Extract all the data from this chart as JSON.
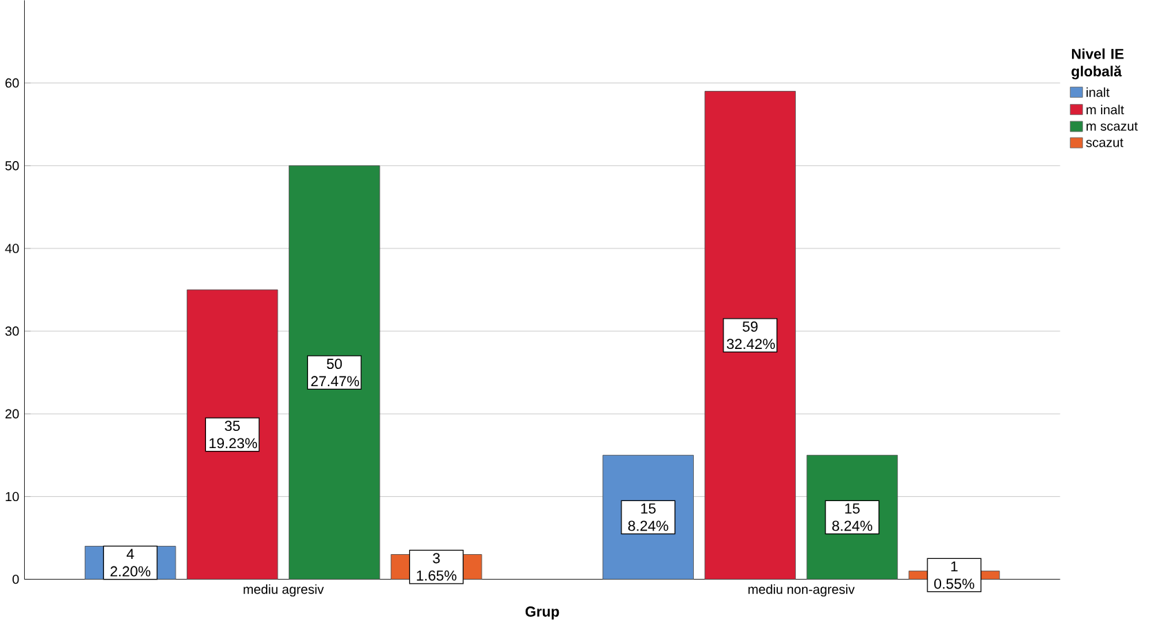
{
  "chart_data": {
    "type": "bar",
    "xlabel": "Grup",
    "legend_title": "Nivel IE globală",
    "categories": [
      "mediu agresiv",
      "mediu non-agresiv"
    ],
    "series": [
      {
        "name": "inalt",
        "color": "#5b8fcf",
        "values": [
          4,
          15
        ],
        "value_labels": [
          "4 2.20%",
          "15 8.24%"
        ]
      },
      {
        "name": "m  inalt",
        "color": "#d91e36",
        "values": [
          35,
          59
        ],
        "value_labels": [
          "35 19.23%",
          "59 32.42%"
        ]
      },
      {
        "name": "m scazut",
        "color": "#228840",
        "values": [
          50,
          15
        ],
        "value_labels": [
          "50 27.47%",
          "15 8.24%"
        ]
      },
      {
        "name": "scazut",
        "color": "#e8622a",
        "values": [
          3,
          1
        ],
        "value_labels": [
          "3 1.65%",
          "1 0.55%"
        ]
      }
    ],
    "ylim": [
      0,
      70
    ],
    "yticks": [
      0,
      10,
      20,
      30,
      40,
      50,
      60
    ],
    "grid": "y",
    "legend": "top right"
  }
}
